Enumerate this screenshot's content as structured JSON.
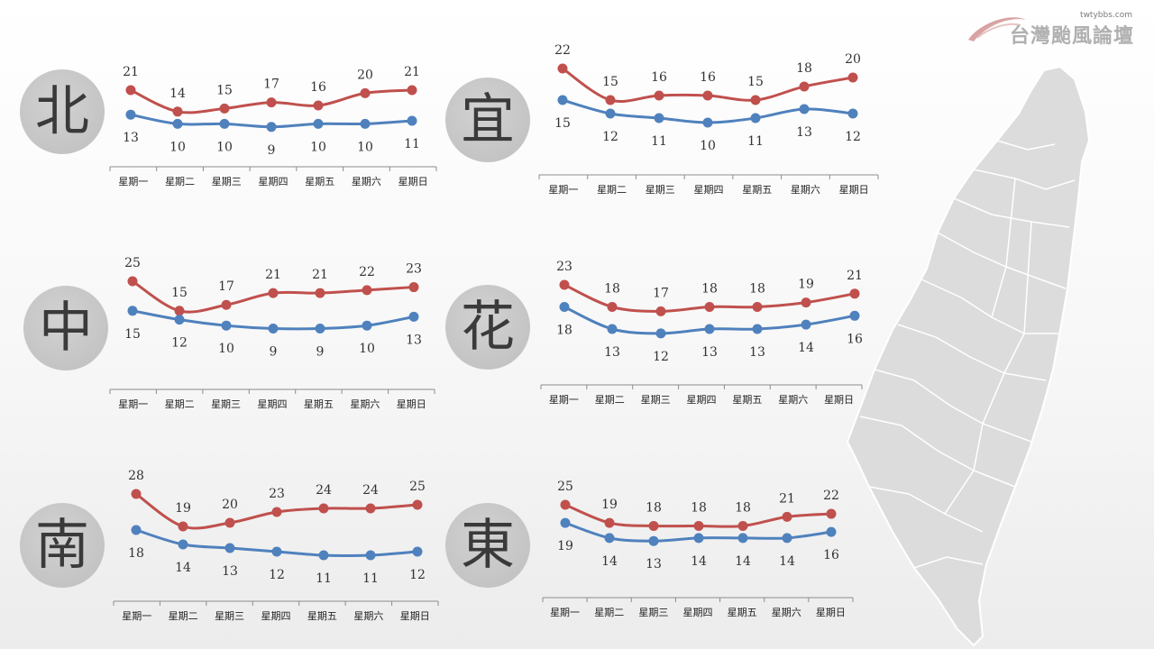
{
  "header": {
    "site_url": "twtybbs.com",
    "site_name": "台灣颱風論壇"
  },
  "colors": {
    "high": "#c0504d",
    "low": "#4f81bd",
    "axis": "#8c8c8c",
    "circle": "#c6c6c6"
  },
  "chart_data": [
    {
      "type": "line",
      "region": "北",
      "categories": [
        "星期一",
        "星期二",
        "星期三",
        "星期四",
        "星期五",
        "星期六",
        "星期日"
      ],
      "series": [
        {
          "values": [
            21,
            14,
            15,
            17,
            16,
            20,
            21
          ]
        },
        {
          "values": [
            13,
            10,
            10,
            9,
            10,
            10,
            11
          ]
        }
      ]
    },
    {
      "type": "line",
      "region": "宜",
      "categories": [
        "星期一",
        "星期二",
        "星期三",
        "星期四",
        "星期五",
        "星期六",
        "星期日"
      ],
      "series": [
        {
          "values": [
            22,
            15,
            16,
            16,
            15,
            18,
            20
          ]
        },
        {
          "values": [
            15,
            12,
            11,
            10,
            11,
            13,
            12
          ]
        }
      ]
    },
    {
      "type": "line",
      "region": "中",
      "categories": [
        "星期一",
        "星期二",
        "星期三",
        "星期四",
        "星期五",
        "星期六",
        "星期日"
      ],
      "series": [
        {
          "values": [
            25,
            15,
            17,
            21,
            21,
            22,
            23
          ]
        },
        {
          "values": [
            15,
            12,
            10,
            9,
            9,
            10,
            13
          ]
        }
      ]
    },
    {
      "type": "line",
      "region": "花",
      "categories": [
        "星期一",
        "星期二",
        "星期三",
        "星期四",
        "星期五",
        "星期六",
        "星期日"
      ],
      "series": [
        {
          "values": [
            23,
            18,
            17,
            18,
            18,
            19,
            21
          ]
        },
        {
          "values": [
            18,
            13,
            12,
            13,
            13,
            14,
            16
          ]
        }
      ]
    },
    {
      "type": "line",
      "region": "南",
      "categories": [
        "星期一",
        "星期二",
        "星期三",
        "星期四",
        "星期五",
        "星期六",
        "星期日"
      ],
      "series": [
        {
          "values": [
            28,
            19,
            20,
            23,
            24,
            24,
            25
          ]
        },
        {
          "values": [
            18,
            14,
            13,
            12,
            11,
            11,
            12
          ]
        }
      ]
    },
    {
      "type": "line",
      "region": "東",
      "categories": [
        "星期一",
        "星期二",
        "星期三",
        "星期四",
        "星期五",
        "星期六",
        "星期日"
      ],
      "series": [
        {
          "values": [
            25,
            19,
            18,
            18,
            18,
            21,
            22
          ]
        },
        {
          "values": [
            19,
            14,
            13,
            14,
            14,
            14,
            16
          ]
        }
      ]
    }
  ]
}
